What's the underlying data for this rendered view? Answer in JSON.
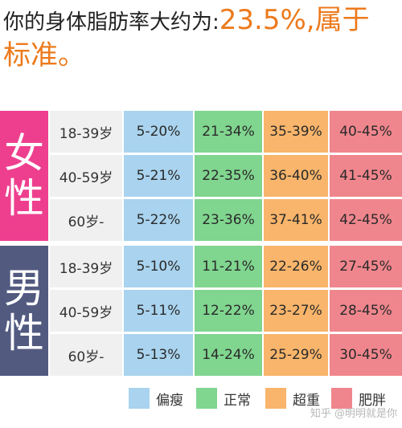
{
  "header": {
    "lead": "你的身体脂肪率大约为:",
    "result": "23.5%,属于",
    "result_line2": "标准。"
  },
  "colors": {
    "accent": "#ec7a1c",
    "female": "#ee3f8f",
    "male": "#525a80",
    "underweight": "#a9d3ee",
    "normal": "#80d58f",
    "overweight": "#f8b56b",
    "obese": "#f0868d"
  },
  "table": {
    "groups": [
      {
        "label_chars": [
          "女",
          "性"
        ],
        "rows": [
          {
            "age": "18-39岁",
            "values": [
              "5-20%",
              "21-34%",
              "35-39%",
              "40-45%"
            ]
          },
          {
            "age": "40-59岁",
            "values": [
              "5-21%",
              "22-35%",
              "36-40%",
              "41-45%"
            ]
          },
          {
            "age": "60岁-",
            "values": [
              "5-22%",
              "23-36%",
              "37-41%",
              "42-45%"
            ]
          }
        ]
      },
      {
        "label_chars": [
          "男",
          "性"
        ],
        "rows": [
          {
            "age": "18-39岁",
            "values": [
              "5-10%",
              "11-21%",
              "22-26%",
              "27-45%"
            ]
          },
          {
            "age": "40-59岁",
            "values": [
              "5-11%",
              "12-22%",
              "23-27%",
              "28-45%"
            ]
          },
          {
            "age": "60岁-",
            "values": [
              "5-13%",
              "14-24%",
              "25-29%",
              "30-45%"
            ]
          }
        ]
      }
    ]
  },
  "legend": [
    {
      "label": "偏瘦",
      "color": "#a9d3ee"
    },
    {
      "label": "正常",
      "color": "#80d58f"
    },
    {
      "label": "超重",
      "color": "#f8b56b"
    },
    {
      "label": "肥胖",
      "color": "#f0868d"
    }
  ],
  "watermark": "知乎 @明明就是你"
}
